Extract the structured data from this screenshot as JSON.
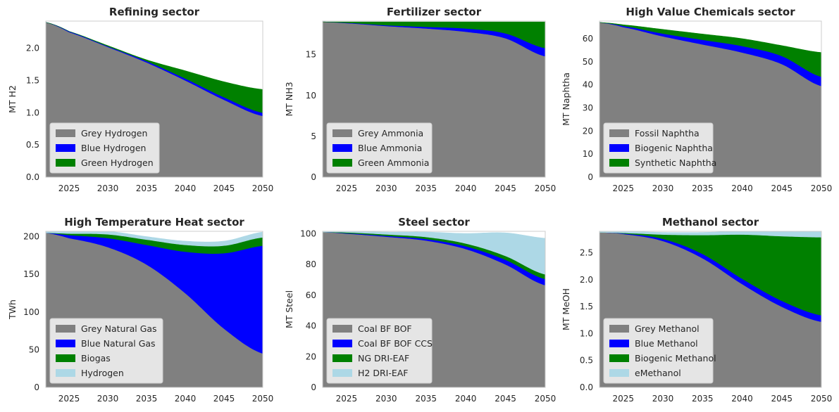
{
  "chart_data": [
    {
      "type": "area",
      "title": "Refining sector",
      "xlabel": "",
      "ylabel": "MT H2",
      "xlim": [
        2022,
        2050
      ],
      "ylim": [
        0,
        2.42
      ],
      "xticks": [
        2025,
        2030,
        2035,
        2040,
        2045,
        2050
      ],
      "yticks": [
        0.0,
        0.5,
        1.0,
        1.5,
        2.0
      ],
      "ytick_labels": [
        "0.0",
        "0.5",
        "1.0",
        "1.5",
        "2.0"
      ],
      "legend_position": "lower-left",
      "x": [
        2022,
        2025,
        2030,
        2035,
        2040,
        2045,
        2050
      ],
      "series": [
        {
          "name": "Grey Hydrogen",
          "color": "#808080",
          "values": [
            2.4,
            2.25,
            2.02,
            1.78,
            1.5,
            1.2,
            0.95
          ]
        },
        {
          "name": "Blue Hydrogen",
          "color": "#0000ff",
          "values": [
            0.0,
            0.01,
            0.01,
            0.02,
            0.03,
            0.04,
            0.05
          ]
        },
        {
          "name": "Green Hydrogen",
          "color": "#008000",
          "values": [
            0.0,
            0.0,
            0.01,
            0.02,
            0.12,
            0.24,
            0.36
          ]
        }
      ]
    },
    {
      "type": "area",
      "title": "Fertilizer sector",
      "xlabel": "",
      "ylabel": "MT NH3",
      "xlim": [
        2022,
        2050
      ],
      "ylim": [
        0,
        19.1
      ],
      "xticks": [
        2025,
        2030,
        2035,
        2040,
        2045,
        2050
      ],
      "yticks": [
        0,
        5,
        10,
        15
      ],
      "ytick_labels": [
        "0",
        "5",
        "10",
        "15"
      ],
      "legend_position": "lower-left",
      "x": [
        2022,
        2025,
        2030,
        2035,
        2040,
        2045,
        2050
      ],
      "series": [
        {
          "name": "Grey Ammonia",
          "color": "#808080",
          "values": [
            19.0,
            18.85,
            18.5,
            18.2,
            17.8,
            17.0,
            14.8
          ]
        },
        {
          "name": "Blue Ammonia",
          "color": "#0000ff",
          "values": [
            0.0,
            0.05,
            0.1,
            0.2,
            0.4,
            0.6,
            1.0
          ]
        },
        {
          "name": "Green Ammonia",
          "color": "#008000",
          "values": [
            0.0,
            0.1,
            0.4,
            0.6,
            0.8,
            1.4,
            3.2
          ]
        }
      ]
    },
    {
      "type": "area",
      "title": "High Value Chemicals sector",
      "xlabel": "",
      "ylabel": "MT Naphtha",
      "xlim": [
        2022,
        2050
      ],
      "ylim": [
        0,
        67.6
      ],
      "xticks": [
        2025,
        2030,
        2035,
        2040,
        2045,
        2050
      ],
      "yticks": [
        0,
        10,
        20,
        30,
        40,
        50,
        60
      ],
      "ytick_labels": [
        "0",
        "10",
        "20",
        "30",
        "40",
        "50",
        "60"
      ],
      "legend_position": "lower-left",
      "x": [
        2022,
        2025,
        2030,
        2035,
        2040,
        2045,
        2050
      ],
      "series": [
        {
          "name": "Fossil Naphtha",
          "color": "#808080",
          "values": [
            67.0,
            65.0,
            61.0,
            57.5,
            54.0,
            49.0,
            39.5
          ]
        },
        {
          "name": "Biogenic Naphtha",
          "color": "#0000ff",
          "values": [
            0.0,
            0.5,
            1.2,
            2.0,
            2.8,
            3.5,
            4.0
          ]
        },
        {
          "name": "Synthetic Naphtha",
          "color": "#008000",
          "values": [
            0.0,
            0.5,
            1.8,
            2.5,
            3.2,
            4.5,
            10.5
          ]
        }
      ]
    },
    {
      "type": "area",
      "title": "High Temperature Heat sector",
      "xlabel": "",
      "ylabel": "TWh",
      "xlim": [
        2022,
        2050
      ],
      "ylim": [
        0,
        207
      ],
      "xticks": [
        2025,
        2030,
        2035,
        2040,
        2045,
        2050
      ],
      "yticks": [
        0,
        50,
        100,
        150,
        200
      ],
      "ytick_labels": [
        "0",
        "50",
        "100",
        "150",
        "200"
      ],
      "legend_position": "lower-left",
      "x": [
        2022,
        2025,
        2030,
        2035,
        2040,
        2045,
        2050
      ],
      "series": [
        {
          "name": "Grey Natural Gas",
          "color": "#808080",
          "values": [
            205,
            198,
            186,
            163,
            125,
            78,
            45
          ]
        },
        {
          "name": "Blue Natural Gas",
          "color": "#0000ff",
          "values": [
            0,
            4,
            12,
            26,
            55,
            100,
            143
          ]
        },
        {
          "name": "Biogas",
          "color": "#008000",
          "values": [
            0,
            2,
            5,
            7,
            9,
            10,
            11
          ]
        },
        {
          "name": "Hydrogen",
          "color": "#add8e6",
          "values": [
            2,
            3,
            4,
            4,
            5,
            6,
            7
          ]
        }
      ]
    },
    {
      "type": "area",
      "title": "Steel sector",
      "xlabel": "",
      "ylabel": "MT Steel",
      "xlim": [
        2022,
        2050
      ],
      "ylim": [
        0,
        101.5
      ],
      "xticks": [
        2025,
        2030,
        2035,
        2040,
        2045,
        2050
      ],
      "yticks": [
        0,
        20,
        40,
        60,
        80,
        100
      ],
      "ytick_labels": [
        "0",
        "20",
        "40",
        "60",
        "80",
        "100"
      ],
      "legend_position": "lower-left",
      "x": [
        2022,
        2025,
        2030,
        2035,
        2040,
        2045,
        2050
      ],
      "series": [
        {
          "name": "Coal BF BOF",
          "color": "#808080",
          "values": [
            101.0,
            100.0,
            98.0,
            95.5,
            90.0,
            80.0,
            66.5
          ]
        },
        {
          "name": "Coal BF BOF CCS",
          "color": "#0000ff",
          "values": [
            0.0,
            0.3,
            0.6,
            1.0,
            1.8,
            3.0,
            4.0
          ]
        },
        {
          "name": "NG DRI-EAF",
          "color": "#008000",
          "values": [
            0.0,
            0.5,
            0.9,
            1.3,
            1.8,
            2.5,
            3.0
          ]
        },
        {
          "name": "H2 DRI-EAF",
          "color": "#add8e6",
          "values": [
            0.5,
            0.7,
            1.5,
            3.2,
            6.5,
            15.0,
            23.5
          ]
        }
      ]
    },
    {
      "type": "area",
      "title": "Methanol sector",
      "xlabel": "",
      "ylabel": "MT MeOH",
      "xlim": [
        2022,
        2050
      ],
      "ylim": [
        0,
        2.9
      ],
      "xticks": [
        2025,
        2030,
        2035,
        2040,
        2045,
        2050
      ],
      "yticks": [
        0.0,
        0.5,
        1.0,
        1.5,
        2.0,
        2.5
      ],
      "ytick_labels": [
        "0.0",
        "0.5",
        "1.0",
        "1.5",
        "2.0",
        "2.5"
      ],
      "legend_position": "lower-left",
      "x": [
        2022,
        2025,
        2030,
        2035,
        2040,
        2045,
        2050
      ],
      "series": [
        {
          "name": "Grey Methanol",
          "color": "#808080",
          "values": [
            2.88,
            2.85,
            2.72,
            2.4,
            1.92,
            1.5,
            1.22
          ]
        },
        {
          "name": "Blue Methanol",
          "color": "#0000ff",
          "values": [
            0.0,
            0.01,
            0.04,
            0.08,
            0.1,
            0.11,
            0.12
          ]
        },
        {
          "name": "Biogenic Methanol",
          "color": "#008000",
          "values": [
            0.0,
            0.01,
            0.08,
            0.35,
            0.82,
            1.2,
            1.45
          ]
        },
        {
          "name": "eMethanol",
          "color": "#add8e6",
          "values": [
            0.02,
            0.03,
            0.04,
            0.05,
            0.06,
            0.08,
            0.11
          ]
        }
      ]
    }
  ]
}
